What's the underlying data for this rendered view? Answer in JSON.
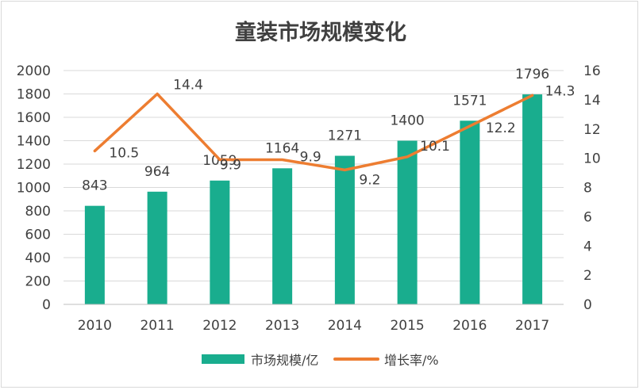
{
  "chart_data": {
    "type": "bar+line",
    "title": "童装市场规模变化",
    "categories": [
      "2010",
      "2011",
      "2012",
      "2013",
      "2014",
      "2015",
      "2016",
      "2017"
    ],
    "series": [
      {
        "name": "市场规模/亿",
        "kind": "bar",
        "axis": "left",
        "color": "#19AD8E",
        "values": [
          843,
          964,
          1059,
          1164,
          1271,
          1400,
          1571,
          1796
        ],
        "labels": [
          "843",
          "964",
          "1059",
          "1164",
          "1271",
          "1400",
          "1571",
          "1796"
        ]
      },
      {
        "name": "增长率/%",
        "kind": "line",
        "axis": "right",
        "color": "#ED7D31",
        "values": [
          10.5,
          14.4,
          9.9,
          9.9,
          9.2,
          10.1,
          12.2,
          14.3
        ],
        "labels": [
          "10.5",
          "14.4",
          "9.9",
          "9.9",
          "9.2",
          "10.1",
          "12.2",
          "14.3"
        ]
      }
    ],
    "y_left": {
      "min": 0,
      "max": 2000,
      "step": 200,
      "ticks": [
        "0",
        "200",
        "400",
        "600",
        "800",
        "1000",
        "1200",
        "1400",
        "1600",
        "1800",
        "2000"
      ]
    },
    "y_right": {
      "min": 0,
      "max": 16,
      "step": 2,
      "ticks": [
        "0",
        "2",
        "4",
        "6",
        "8",
        "10",
        "12",
        "14",
        "16"
      ]
    },
    "legend": {
      "position": "bottom",
      "items": [
        "市场规模/亿",
        "增长率/%"
      ]
    },
    "grid": true
  }
}
